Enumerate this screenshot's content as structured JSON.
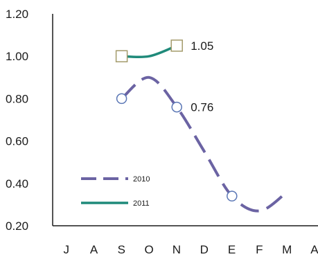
{
  "chart_data": {
    "type": "line",
    "title": "",
    "xlabel": "",
    "ylabel": "",
    "categories": [
      "J",
      "A",
      "S",
      "O",
      "N",
      "D",
      "E",
      "F",
      "M",
      "A"
    ],
    "y_ticks": [
      "0.20",
      "0.40",
      "0.60",
      "0.80",
      "1.00",
      "1.20"
    ],
    "ylim": [
      0.2,
      1.2
    ],
    "grid": false,
    "legend_position": "lower-left",
    "series": [
      {
        "name": "2010",
        "line_style": "dashed",
        "color": "#6b63a3",
        "marker": "circle",
        "values": [
          null,
          null,
          0.8,
          0.9,
          0.76,
          0.55,
          0.34,
          0.27,
          0.36,
          null
        ],
        "marker_indices": [
          2,
          4,
          6
        ]
      },
      {
        "name": "2011",
        "line_style": "solid",
        "color": "#1f8a7a",
        "marker": "square",
        "values": [
          null,
          null,
          1.0,
          1.0,
          1.05,
          null,
          null,
          null,
          null,
          null
        ],
        "marker_indices": [
          2,
          4
        ]
      }
    ],
    "annotations": [
      {
        "series": "2011",
        "index": 4,
        "text": "1.05"
      },
      {
        "series": "2010",
        "index": 4,
        "text": "0.76"
      }
    ],
    "marker_colors": {
      "circle_stroke": "#5a76b5",
      "square_stroke": "#a39a6a"
    },
    "axis_color": "#1a1a1a"
  }
}
